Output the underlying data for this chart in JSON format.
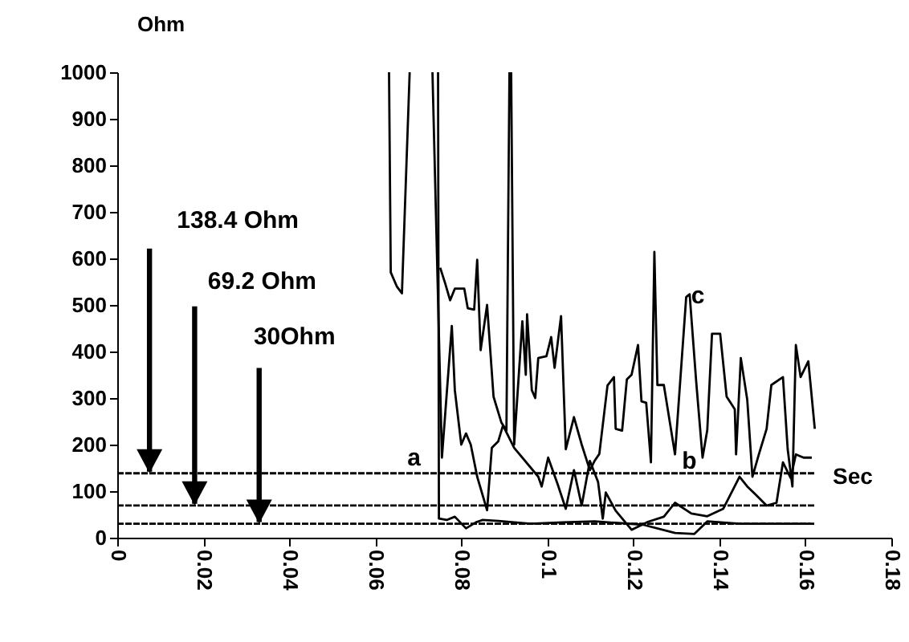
{
  "chart_data": {
    "type": "line",
    "xlabel": "Sec",
    "ylabel": "Ohm",
    "xlim": [
      0,
      0.18
    ],
    "xticks": [
      0,
      0.02,
      0.04,
      0.06,
      0.08,
      0.1,
      0.12,
      0.14,
      0.16,
      0.18
    ],
    "ylim": [
      0,
      1000
    ],
    "yticks": [
      0,
      100,
      200,
      300,
      400,
      500,
      600,
      700,
      800,
      900,
      1000
    ],
    "grid": false,
    "marker": "none",
    "line_style": "solid",
    "series": [
      {
        "color": "#000000",
        "line_style": "dashed",
        "x": [
          0,
          0.1622
        ],
        "values": [
          138.4,
          138.4
        ]
      },
      {
        "color": "#000000",
        "line_style": "dashed",
        "x": [
          0,
          0.1622
        ],
        "values": [
          69.2,
          69.2
        ]
      },
      {
        "color": "#000000",
        "line_style": "dashed",
        "x": [
          0,
          0.1622
        ],
        "values": [
          30,
          30
        ]
      },
      {
        "color": "#000000",
        "x": [
          0.0632,
          0.0636,
          0.065,
          0.0662,
          0.068,
          0.0729,
          0.0751,
          0.0763,
          0.0774,
          0.0785,
          0.0807,
          0.0815,
          0.083,
          0.0837,
          0.0845,
          0.086,
          0.0875,
          0.0893,
          0.0905,
          0.0912,
          0.0916,
          0.0923,
          0.0942,
          0.095,
          0.0953,
          0.0964,
          0.0972,
          0.0979,
          0.0998,
          0.1009,
          0.1017,
          0.1032,
          0.1043,
          0.1062,
          0.108,
          0.1099,
          0.111,
          0.1121,
          0.114,
          0.1155,
          0.1159,
          0.1174,
          0.1185,
          0.1196,
          0.1211,
          0.1219,
          0.123,
          0.1241,
          0.1249,
          0.1256,
          0.1271,
          0.1297,
          0.1323,
          0.1331,
          0.1346,
          0.1361,
          0.1372,
          0.1383,
          0.1402,
          0.1417,
          0.1436,
          0.1439,
          0.145,
          0.1465,
          0.1477,
          0.1492,
          0.151,
          0.1521,
          0.1548,
          0.1559,
          0.157,
          0.1578,
          0.1589,
          0.1607,
          0.1622
        ],
        "values": [
          1000,
          570,
          540,
          525,
          1000,
          null,
          580,
          545,
          510,
          535,
          535,
          493,
          490,
          597,
          403,
          500,
          303,
          248,
          230,
          1000,
          1000,
          200,
          465,
          350,
          480,
          317,
          300,
          386,
          390,
          431,
          365,
          476,
          190,
          259,
          200,
          145,
          165,
          180,
          327,
          345,
          234,
          230,
          340,
          350,
          414,
          293,
          290,
          162,
          614,
          328,
          328,
          179,
          517,
          523,
          338,
          172,
          231,
          438,
          438,
          303,
          276,
          179,
          386,
          296,
          131,
          179,
          234,
          328,
          345,
          190,
          110,
          414,
          345,
          379,
          234
        ]
      },
      {
        "color": "#000000",
        "x": [
          0.0733,
          0.0755,
          0.0778,
          0.0785,
          0.08,
          0.0811,
          0.0822,
          0.0837,
          0.086,
          0.0871,
          0.0886,
          0.0897,
          0.0923,
          0.0979,
          0.0987,
          0.1002,
          0.1024,
          0.1043,
          0.1062,
          0.108,
          0.1099,
          0.1118,
          0.1129,
          0.1136,
          0.1159,
          0.1196,
          0.1234,
          0.1271,
          0.1297,
          0.1335,
          0.1372,
          0.1409,
          0.1447,
          0.1465,
          0.1484,
          0.151,
          0.1533,
          0.1548,
          0.1566,
          0.1578,
          0.1596,
          0.1615
        ],
        "values": [
          1000,
          172,
          455,
          317,
          200,
          224,
          200,
          131,
          59,
          193,
          207,
          241,
          193,
          131,
          110,
          172,
          115,
          62,
          145,
          69,
          165,
          120,
          41,
          97,
          58,
          17,
          34,
          45,
          75,
          52,
          46,
          62,
          131,
          110,
          93,
          69,
          75,
          162,
          128,
          179,
          172,
          172
        ]
      },
      {
        "color": "#000000",
        "x": [
          0.0746,
          0.0748,
          0.0766,
          0.0785,
          0.0811,
          0.0834,
          0.0849,
          0.0886,
          0.0961,
          0.1036,
          0.111,
          0.1222,
          0.1297,
          0.1342,
          0.1372,
          0.1447,
          0.1521,
          0.1612
        ],
        "values": [
          1000,
          41,
          38,
          45,
          20,
          33,
          38,
          36,
          30,
          33,
          35,
          28,
          10,
          8,
          35,
          30,
          30,
          30
        ]
      }
    ],
    "annotations": [
      {
        "text": "138.4 Ohm",
        "x": 0.0075,
        "y": 138.4
      },
      {
        "text": "69.2 Ohm",
        "x": 0.018,
        "y": 69.2
      },
      {
        "text": "30Ohm",
        "x": 0.033,
        "y": 30
      },
      {
        "text": "a",
        "x": 0.069,
        "y": 138.4
      },
      {
        "text": "b",
        "x": 0.133,
        "y": 138.4
      },
      {
        "text": "c",
        "x": 0.135,
        "y": 520
      }
    ]
  }
}
